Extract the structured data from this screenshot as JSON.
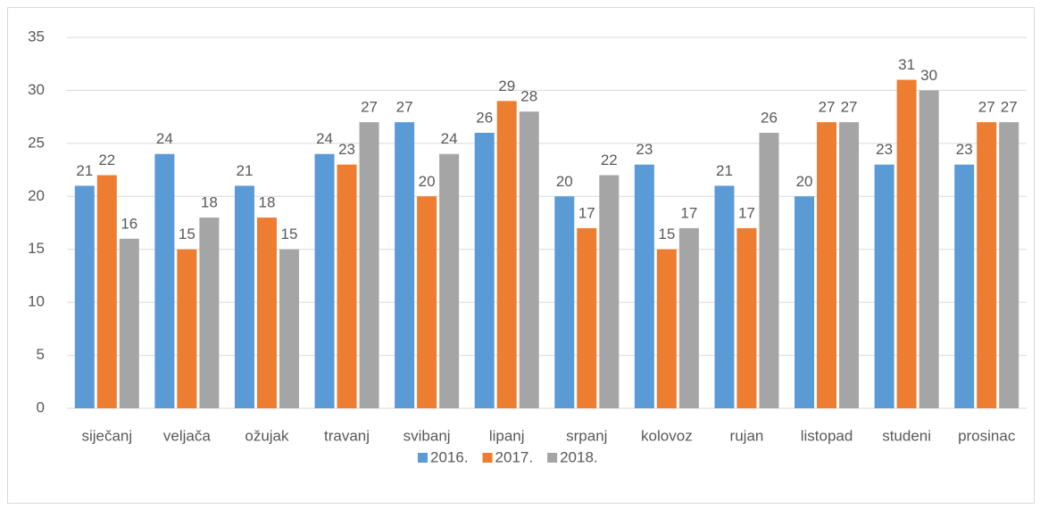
{
  "chart_data": {
    "type": "bar",
    "categories": [
      "siječanj",
      "veljača",
      "ožujak",
      "travanj",
      "svibanj",
      "lipanj",
      "srpanj",
      "kolovoz",
      "rujan",
      "listopad",
      "studeni",
      "prosinac"
    ],
    "series": [
      {
        "name": "2016.",
        "color": "#5b9bd5",
        "values": [
          21,
          24,
          21,
          24,
          27,
          26,
          20,
          23,
          21,
          20,
          23,
          23
        ]
      },
      {
        "name": "2017.",
        "color": "#ed7d31",
        "values": [
          22,
          15,
          18,
          23,
          20,
          29,
          17,
          15,
          17,
          27,
          31,
          27
        ]
      },
      {
        "name": "2018.",
        "color": "#a5a5a5",
        "values": [
          16,
          18,
          15,
          27,
          24,
          28,
          22,
          17,
          26,
          27,
          30,
          27
        ]
      }
    ],
    "ylim": [
      0,
      35
    ],
    "yticks": [
      0,
      5,
      10,
      15,
      20,
      25,
      30,
      35
    ],
    "grid": true,
    "data_labels": true,
    "legend": "bottom"
  }
}
